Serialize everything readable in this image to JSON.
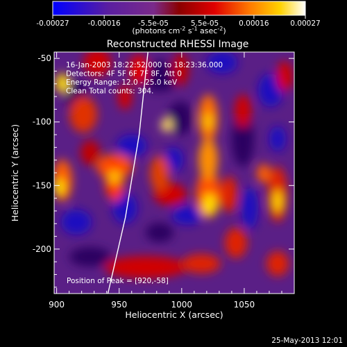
{
  "chart_data": {
    "type": "heatmap",
    "title": "Reconstructed RHESSI Image",
    "xlabel": "Heliocentric X (arcsec)",
    "ylabel": "Heliocentric Y (arcsec)",
    "xlim": [
      898,
      1090
    ],
    "ylim": [
      -235,
      -45
    ],
    "x_ticks": [
      "900",
      "950",
      "1000",
      "1050"
    ],
    "y_ticks": [
      "-50",
      "-100",
      "-150",
      "-200"
    ],
    "x_tick_values": [
      900,
      950,
      1000,
      1050
    ],
    "y_tick_values": [
      -50,
      -100,
      -150,
      -200
    ],
    "colorbar": {
      "ticks": [
        "-0.00027",
        "-0.00016",
        "-5.5e-05",
        "5.5e-05",
        "0.00016",
        "0.00027"
      ],
      "tick_values": [
        -0.00027,
        -0.00016,
        -5.5e-05,
        5.5e-05,
        0.00016,
        0.00027
      ],
      "range": [
        -0.00027,
        0.00027
      ],
      "unit_label_parts": [
        "(photons cm",
        "-2",
        " s",
        "-1",
        " asec",
        "-2",
        ")"
      ]
    },
    "annotations": [
      "16-Jan-2003 18:22:52.000 to 18:23:36.000",
      "Detectors: 4F 5F 6F 7F 8F, Att 0",
      "Energy Range: 12.0 - 25.0 keV",
      "Clean     Total counts: 304."
    ],
    "peak_label": "Position of Peak = [920,-58]",
    "peak": [
      920,
      -58
    ],
    "limb_curve": [
      [
        941,
        -235
      ],
      [
        955,
        -175
      ],
      [
        966,
        -110
      ],
      [
        973,
        -45
      ]
    ]
  },
  "footer": {
    "timestamp": "25-May-2013 12:01"
  }
}
